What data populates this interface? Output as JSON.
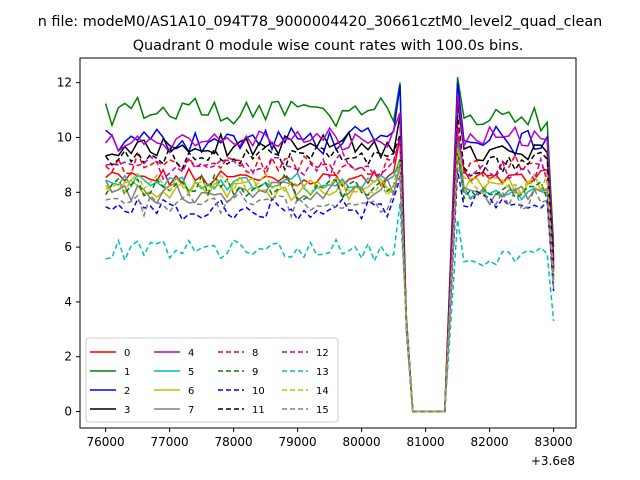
{
  "chart_data": {
    "type": "line",
    "suptitle": "n file: modeM0/AS1A10_094T78_9000004420_30661cztM0_level2_quad_clean",
    "title": "Quadrant 0 module wise count rates with 100.0s bins.",
    "xlabel": "",
    "ylabel": "",
    "xlim": [
      75600,
      83350
    ],
    "ylim": [
      -0.6,
      12.9
    ],
    "x_offset_label": "+3.6e8",
    "x_ticks": [
      76000,
      77000,
      78000,
      79000,
      80000,
      81000,
      82000,
      83000
    ],
    "x_tick_labels": [
      "76000",
      "77000",
      "78000",
      "79000",
      "80000",
      "81000",
      "82000",
      "83000"
    ],
    "y_ticks": [
      0,
      2,
      4,
      6,
      8,
      10,
      12
    ],
    "y_tick_labels": [
      "0",
      "2",
      "4",
      "6",
      "8",
      "10",
      "12"
    ],
    "grid": false,
    "legend_position": "lower-left",
    "legend_columns": 4,
    "segments": [
      {
        "x_start": 76000,
        "x_end": 80600,
        "step": 100
      },
      {
        "x_start": 80700,
        "x_end": 81300,
        "step": 100,
        "gap": true
      },
      {
        "x_start": 81500,
        "x_end": 83000,
        "step": 100
      }
    ],
    "series": [
      {
        "name": "0",
        "color": "#ff0000",
        "style": "solid",
        "mean1": 8.5,
        "mean2": 8.5,
        "amp": 0.3,
        "peak1": 10.0,
        "peak2": 10.1,
        "end": 5.3
      },
      {
        "name": "1",
        "color": "#008000",
        "style": "solid",
        "mean1": 11.0,
        "mean2": 10.6,
        "amp": 0.45,
        "peak1": 12.0,
        "peak2": 12.2,
        "end": 6.0
      },
      {
        "name": "2",
        "color": "#0000ff",
        "style": "solid",
        "mean1": 9.9,
        "mean2": 9.9,
        "amp": 0.4,
        "peak1": 11.9,
        "peak2": 12.0,
        "end": 5.6
      },
      {
        "name": "3",
        "color": "#000000",
        "style": "solid",
        "mean1": 9.7,
        "mean2": 9.4,
        "amp": 0.35,
        "peak1": 10.8,
        "peak2": 11.3,
        "end": 5.2
      },
      {
        "name": "4",
        "color": "#bf00bf",
        "style": "solid",
        "mean1": 9.9,
        "mean2": 9.9,
        "amp": 0.35,
        "peak1": 10.9,
        "peak2": 11.6,
        "end": 5.5
      },
      {
        "name": "5",
        "color": "#00bfbf",
        "style": "solid",
        "mean1": 8.3,
        "mean2": 8.1,
        "amp": 0.3,
        "peak1": 9.2,
        "peak2": 9.9,
        "end": 4.7
      },
      {
        "name": "6",
        "color": "#bfbf00",
        "style": "solid",
        "mean1": 8.2,
        "mean2": 8.3,
        "amp": 0.35,
        "peak1": 9.0,
        "peak2": 9.6,
        "end": 4.9
      },
      {
        "name": "7",
        "color": "#808080",
        "style": "solid",
        "mean1": 8.0,
        "mean2": 8.0,
        "amp": 0.35,
        "peak1": 9.0,
        "peak2": 9.4,
        "end": 4.8
      },
      {
        "name": "8",
        "color": "#ff0000",
        "style": "dashed",
        "mean1": 9.0,
        "mean2": 8.9,
        "amp": 0.35,
        "peak1": 9.9,
        "peak2": 10.4,
        "end": 5.2
      },
      {
        "name": "9",
        "color": "#008000",
        "style": "dashed",
        "mean1": 8.2,
        "mean2": 8.0,
        "amp": 0.35,
        "peak1": 9.2,
        "peak2": 9.6,
        "end": 4.9
      },
      {
        "name": "10",
        "color": "#0000ff",
        "style": "dashed",
        "mean1": 7.4,
        "mean2": 7.6,
        "amp": 0.3,
        "peak1": 8.5,
        "peak2": 8.8,
        "end": 4.4
      },
      {
        "name": "11",
        "color": "#000000",
        "style": "dashed",
        "mean1": 9.3,
        "mean2": 9.0,
        "amp": 0.35,
        "peak1": 10.1,
        "peak2": 10.8,
        "end": 5.3
      },
      {
        "name": "12",
        "color": "#bf00bf",
        "style": "dashed",
        "mean1": 9.0,
        "mean2": 8.8,
        "amp": 0.35,
        "peak1": 10.0,
        "peak2": 10.5,
        "end": 5.1
      },
      {
        "name": "13",
        "color": "#00bfbf",
        "style": "dashed",
        "mean1": 5.9,
        "mean2": 5.6,
        "amp": 0.3,
        "peak1": 7.6,
        "peak2": 7.0,
        "end": 3.3
      },
      {
        "name": "14",
        "color": "#bfbf00",
        "style": "dashed",
        "mean1": 8.3,
        "mean2": 8.2,
        "amp": 0.35,
        "peak1": 9.1,
        "peak2": 9.6,
        "end": 4.7
      },
      {
        "name": "15",
        "color": "#808080",
        "style": "dashed",
        "mean1": 7.6,
        "mean2": 7.8,
        "amp": 0.35,
        "peak1": 8.6,
        "peak2": 9.1,
        "end": 4.5
      }
    ]
  }
}
